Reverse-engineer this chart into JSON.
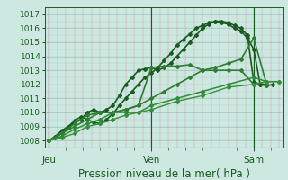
{
  "xlabel": "Pression niveau de la mer( hPa )",
  "bg_color": "#cce8e0",
  "grid_major_color": "#a0c8c0",
  "grid_minor_color": "#c8a0a0",
  "line_dark": "#1a5c20",
  "ylim": [
    1007.5,
    1017.5
  ],
  "yticks": [
    1008,
    1009,
    1010,
    1011,
    1012,
    1013,
    1014,
    1015,
    1016,
    1017
  ],
  "xlim": [
    -2,
    110
  ],
  "x_jeu": 0,
  "x_ven": 48,
  "x_sam": 96,
  "series": [
    {
      "x": [
        0,
        3,
        6,
        9,
        12,
        15,
        18,
        21,
        24,
        27,
        30,
        33,
        36,
        39,
        42,
        45,
        48,
        51,
        54,
        57,
        60,
        63,
        66,
        69,
        72,
        75,
        78,
        81,
        84,
        87,
        90,
        93,
        96,
        99,
        102,
        105
      ],
      "y": [
        1008.0,
        1008.3,
        1008.7,
        1009.0,
        1009.4,
        1009.7,
        1009.5,
        1009.3,
        1009.2,
        1009.5,
        1009.9,
        1010.5,
        1011.0,
        1011.5,
        1012.0,
        1012.5,
        1012.8,
        1013.2,
        1013.7,
        1014.2,
        1014.8,
        1015.2,
        1015.6,
        1016.0,
        1016.2,
        1016.4,
        1016.5,
        1016.4,
        1016.3,
        1016.0,
        1015.8,
        1015.3,
        1014.5,
        1012.0,
        1011.9,
        1012.0
      ],
      "style": "-",
      "marker": "D",
      "ms": 2.0,
      "lw": 1.2,
      "color": "#1a5c20"
    },
    {
      "x": [
        0,
        3,
        6,
        9,
        12,
        15,
        18,
        21,
        24,
        27,
        30,
        33,
        36,
        39,
        42,
        45,
        48,
        51,
        54,
        57,
        60,
        63,
        66,
        69,
        72,
        75,
        78,
        81,
        84,
        87,
        90,
        93,
        96,
        99,
        102
      ],
      "y": [
        1008.0,
        1008.2,
        1008.5,
        1008.9,
        1009.3,
        1009.5,
        1010.0,
        1010.2,
        1010.0,
        1010.2,
        1010.5,
        1011.2,
        1012.0,
        1012.5,
        1013.0,
        1013.1,
        1013.2,
        1013.0,
        1013.2,
        1013.5,
        1014.0,
        1014.5,
        1015.0,
        1015.5,
        1016.0,
        1016.3,
        1016.5,
        1016.5,
        1016.4,
        1016.2,
        1016.0,
        1015.5,
        1012.2,
        1012.0,
        1012.0
      ],
      "style": "-",
      "marker": "D",
      "ms": 2.0,
      "lw": 1.2,
      "color": "#1a5c20"
    },
    {
      "x": [
        0,
        6,
        12,
        18,
        24,
        30,
        36,
        42,
        48,
        54,
        60,
        66,
        72,
        78,
        84,
        90,
        96,
        102
      ],
      "y": [
        1008.0,
        1008.5,
        1009.2,
        1009.8,
        1010.0,
        1010.0,
        1010.2,
        1010.5,
        1013.2,
        1013.3,
        1013.3,
        1013.4,
        1013.0,
        1013.0,
        1013.0,
        1013.0,
        1012.0,
        1012.2
      ],
      "style": "-",
      "marker": "D",
      "ms": 2.0,
      "lw": 1.2,
      "color": "#2e7d32"
    },
    {
      "x": [
        0,
        6,
        12,
        18,
        24,
        30,
        36,
        42,
        48,
        54,
        60,
        66,
        72,
        78,
        84,
        90,
        96,
        102
      ],
      "y": [
        1008.0,
        1008.5,
        1009.0,
        1009.5,
        1010.0,
        1010.0,
        1010.2,
        1010.5,
        1011.0,
        1011.5,
        1012.0,
        1012.5,
        1013.0,
        1013.2,
        1013.5,
        1013.8,
        1015.3,
        1012.0
      ],
      "style": "-",
      "marker": "D",
      "ms": 2.0,
      "lw": 1.2,
      "color": "#2e7d32"
    },
    {
      "x": [
        0,
        6,
        12,
        18,
        24,
        30,
        36,
        42,
        48,
        60,
        72,
        84,
        96,
        102,
        108
      ],
      "y": [
        1008.0,
        1008.3,
        1008.8,
        1009.2,
        1009.5,
        1010.0,
        1010.0,
        1010.0,
        1010.5,
        1011.0,
        1011.5,
        1012.0,
        1012.5,
        1012.2,
        1012.2
      ],
      "style": "-",
      "marker": "D",
      "ms": 2.0,
      "lw": 1.1,
      "color": "#2e8b3a"
    },
    {
      "x": [
        0,
        6,
        12,
        18,
        24,
        30,
        36,
        42,
        48,
        60,
        72,
        84,
        96,
        102,
        108
      ],
      "y": [
        1008.0,
        1008.2,
        1008.5,
        1009.0,
        1009.2,
        1009.5,
        1009.8,
        1010.0,
        1010.2,
        1010.8,
        1011.2,
        1011.8,
        1012.0,
        1012.2,
        1012.2
      ],
      "style": "-",
      "marker": "D",
      "ms": 2.0,
      "lw": 1.0,
      "color": "#388e3c"
    }
  ],
  "tick_color": "#1a5c20",
  "tick_fontsize": 6.5,
  "xlabel_fontsize": 8.5,
  "day_fontsize": 7.5
}
